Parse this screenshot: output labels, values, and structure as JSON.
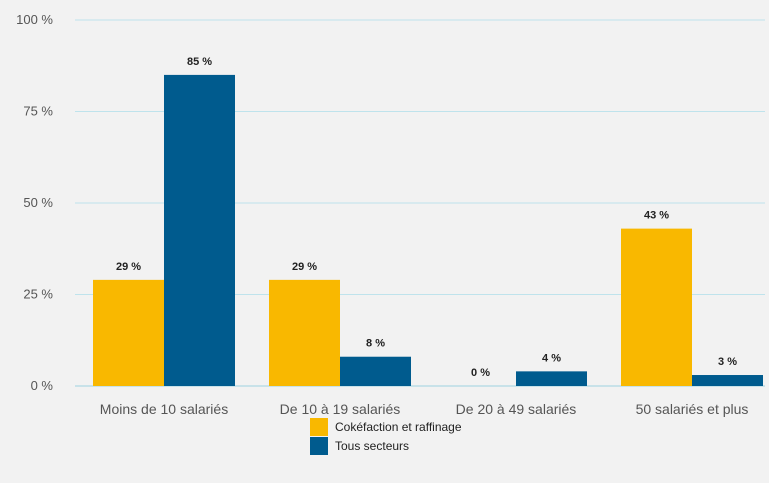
{
  "chart_data": {
    "type": "bar",
    "categories": [
      "Moins de 10 salariés",
      "De 10 à 19 salariés",
      "De 20 à 49 salariés",
      "50 salariés et plus"
    ],
    "series": [
      {
        "name": "Cokéfaction et raffinage",
        "values": [
          29,
          29,
          0,
          43
        ],
        "labels": [
          "29 %",
          "29 %",
          "0 %",
          "43 %"
        ],
        "color": "#f9b800"
      },
      {
        "name": "Tous secteurs",
        "values": [
          85,
          8,
          4,
          3
        ],
        "labels": [
          "85 %",
          "8 %",
          "4 %",
          "3 %"
        ],
        "color": "#005b8e"
      }
    ],
    "ylim": [
      0,
      100
    ],
    "yticks": [
      0,
      25,
      50,
      75,
      100
    ],
    "ytick_labels": [
      "0 %",
      "25 %",
      "50 %",
      "75 %",
      "100 %"
    ],
    "grid": true,
    "legend_position": "bottom-center",
    "title": "",
    "xlabel": "",
    "ylabel": ""
  }
}
